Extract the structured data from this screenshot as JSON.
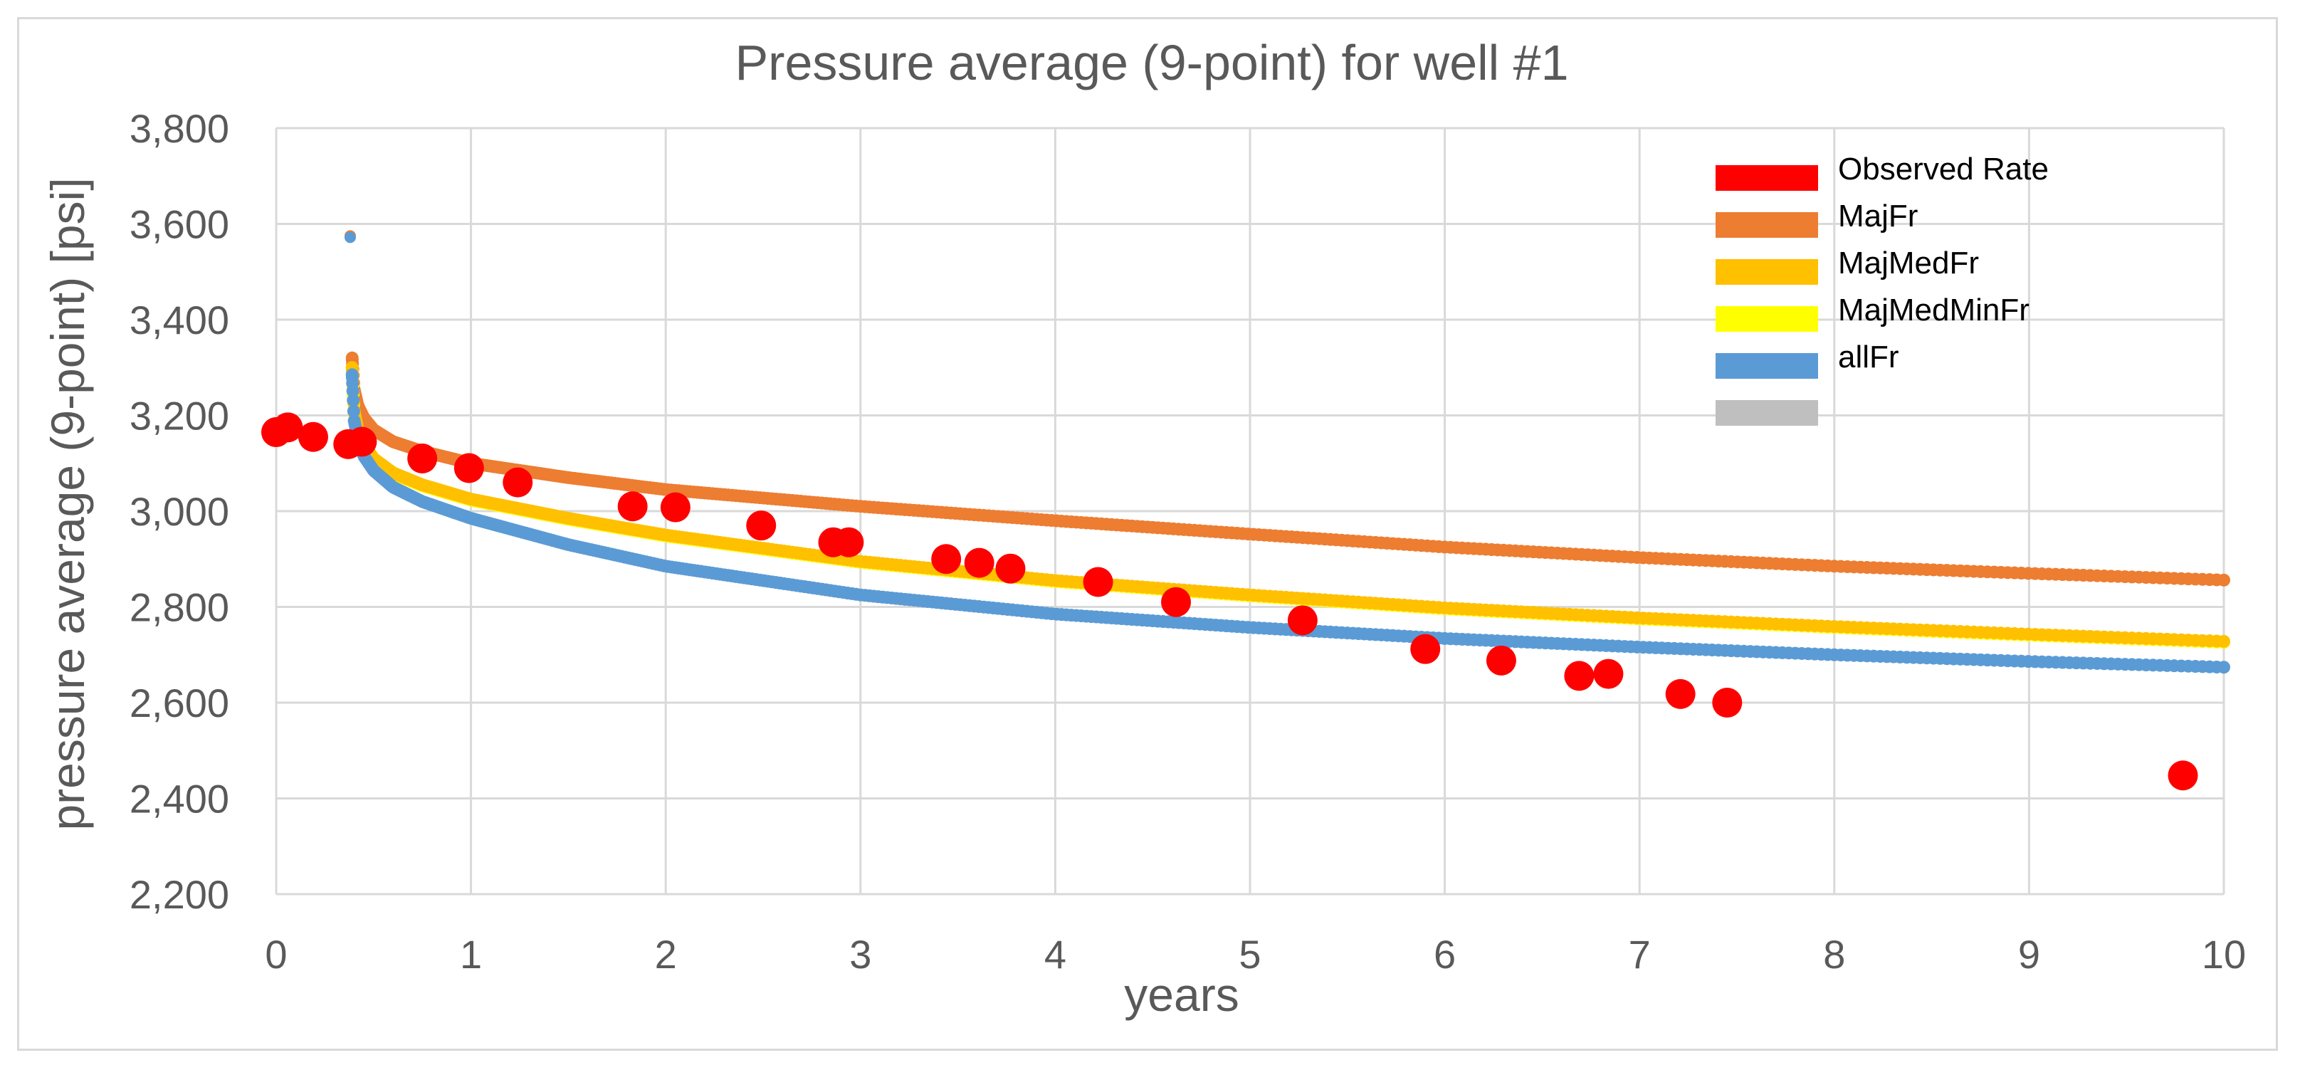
{
  "chart_data": {
    "type": "scatter",
    "title": "Pressure average (9-point) for well #1",
    "xlabel": "years",
    "ylabel": "pressure average (9-point) [psi]",
    "xlim": [
      0,
      10
    ],
    "ylim": [
      2200,
      3800
    ],
    "x_ticks": [
      0,
      1,
      2,
      3,
      4,
      5,
      6,
      7,
      8,
      9,
      10
    ],
    "x_tick_labels": [
      "0",
      "1",
      "2",
      "3",
      "4",
      "5",
      "6",
      "7",
      "8",
      "9",
      "10"
    ],
    "y_ticks": [
      2200,
      2400,
      2600,
      2800,
      3000,
      3200,
      3400,
      3600,
      3800
    ],
    "y_tick_labels": [
      "2,200",
      "2,400",
      "2,600",
      "2,800",
      "3,000",
      "3,200",
      "3,400",
      "3,600",
      "3,800"
    ],
    "grid": true,
    "legend_position": "top-right",
    "series": [
      {
        "name": "Observed Rate",
        "color": "#ff0000",
        "marker": "large-dot",
        "x": [
          0.0,
          0.06,
          0.19,
          0.37,
          0.44,
          0.75,
          0.99,
          1.24,
          1.83,
          2.05,
          2.49,
          2.86,
          2.94,
          3.44,
          3.61,
          3.77,
          4.22,
          4.62,
          5.27,
          5.9,
          6.29,
          6.69,
          6.84,
          7.21,
          7.45,
          9.79
        ],
        "y": [
          3165,
          3175,
          3155,
          3140,
          3145,
          3110,
          3090,
          3060,
          3010,
          3008,
          2970,
          2935,
          2935,
          2900,
          2892,
          2880,
          2852,
          2810,
          2772,
          2712,
          2688,
          2656,
          2660,
          2618,
          2600,
          2448
        ]
      },
      {
        "name": "MajFr",
        "color": "#ed7d31",
        "marker": "dense-dots",
        "x": [
          0.39,
          0.4,
          0.42,
          0.45,
          0.5,
          0.6,
          0.75,
          1.0,
          1.5,
          2.0,
          3.0,
          4.0,
          5.0,
          6.0,
          7.0,
          8.0,
          9.0,
          10.0
        ],
        "y": [
          3320,
          3255,
          3220,
          3195,
          3170,
          3145,
          3125,
          3100,
          3070,
          3045,
          3010,
          2980,
          2952,
          2925,
          2903,
          2885,
          2870,
          2856
        ]
      },
      {
        "name": "MajMedFr",
        "color": "#ffc000",
        "marker": "dense-dots",
        "x": [
          0.39,
          0.4,
          0.42,
          0.45,
          0.5,
          0.6,
          0.75,
          1.0,
          1.5,
          2.0,
          3.0,
          4.0,
          5.0,
          6.0,
          7.0,
          8.0,
          9.0,
          10.0
        ],
        "y": [
          3300,
          3210,
          3170,
          3140,
          3110,
          3080,
          3055,
          3025,
          2985,
          2950,
          2895,
          2855,
          2825,
          2798,
          2777,
          2759,
          2743,
          2728
        ]
      },
      {
        "name": "MajMedMinFr",
        "color": "#ffff00",
        "marker": "dense-dots",
        "x": [
          0.39,
          0.4,
          0.42,
          0.45,
          0.5,
          0.6,
          0.75,
          1.0,
          1.5,
          2.0,
          3.0,
          4.0,
          5.0,
          6.0,
          7.0,
          8.0,
          9.0,
          10.0
        ],
        "y": [
          3295,
          3205,
          3166,
          3137,
          3107,
          3078,
          3053,
          3023,
          2983,
          2948,
          2893,
          2853,
          2823,
          2796,
          2775,
          2757,
          2741,
          2726
        ]
      },
      {
        "name": "allFr",
        "color": "#5b9bd5",
        "marker": "dense-dots",
        "x": [
          0.39,
          0.4,
          0.42,
          0.45,
          0.5,
          0.6,
          0.75,
          1.0,
          1.5,
          2.0,
          3.0,
          4.0,
          5.0,
          6.0,
          7.0,
          8.0,
          9.0,
          10.0
        ],
        "y": [
          3285,
          3190,
          3150,
          3115,
          3085,
          3050,
          3020,
          2985,
          2930,
          2885,
          2825,
          2785,
          2757,
          2734,
          2716,
          2700,
          2686,
          2674
        ]
      },
      {
        "name": "",
        "color": "#bfbfbf",
        "marker": "none",
        "x": [],
        "y": []
      }
    ],
    "outliers": [
      {
        "series": "MajFr",
        "x": 0.38,
        "y": 3575
      },
      {
        "series": "allFr",
        "x": 0.38,
        "y": 3572
      }
    ]
  }
}
